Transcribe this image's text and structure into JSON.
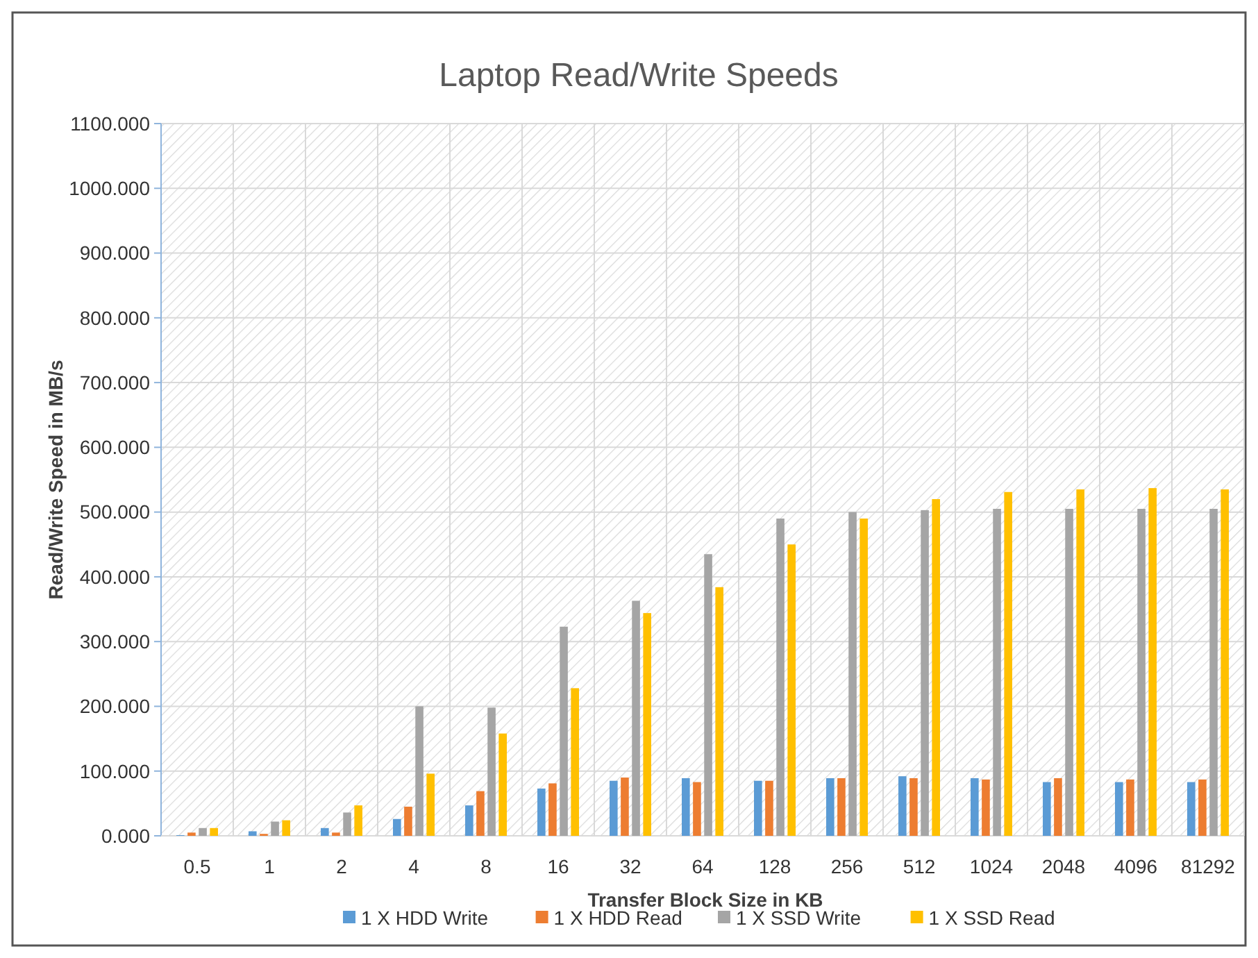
{
  "chart_data": {
    "type": "bar",
    "title": "Laptop Read/Write Speeds",
    "xlabel": "Transfer Block Size in KB",
    "ylabel": "Read/Write Speed in MB/s",
    "categories": [
      "0.5",
      "1",
      "2",
      "4",
      "8",
      "16",
      "32",
      "64",
      "128",
      "256",
      "512",
      "1024",
      "2048",
      "4096",
      "81292"
    ],
    "series": [
      {
        "name": "1 X HDD Write",
        "color": "#5b9bd5",
        "values": [
          1,
          7,
          12,
          26,
          47,
          73,
          85,
          89,
          85,
          89,
          92,
          89,
          83,
          83,
          83
        ]
      },
      {
        "name": "1 X HDD Read",
        "color": "#ed7d31",
        "values": [
          5,
          3,
          5,
          45,
          69,
          81,
          90,
          83,
          85,
          89,
          89,
          87,
          89,
          87,
          87
        ]
      },
      {
        "name": "1 X SSD Write",
        "color": "#a5a5a5",
        "values": [
          12,
          22,
          36,
          200,
          198,
          323,
          363,
          435,
          490,
          500,
          503,
          505,
          505,
          505,
          505
        ]
      },
      {
        "name": "1 X SSD Read",
        "color": "#ffc000",
        "values": [
          12,
          24,
          47,
          96,
          158,
          228,
          344,
          384,
          450,
          490,
          520,
          531,
          535,
          537,
          535
        ]
      }
    ],
    "ylim": [
      0,
      1100
    ],
    "yticks": [
      {
        "value": 0,
        "label": "0.000"
      },
      {
        "value": 100,
        "label": "100.000"
      },
      {
        "value": 200,
        "label": "200.000"
      },
      {
        "value": 300,
        "label": "300.000"
      },
      {
        "value": 400,
        "label": "400.000"
      },
      {
        "value": 500,
        "label": "500.000"
      },
      {
        "value": 600,
        "label": "600.000"
      },
      {
        "value": 700,
        "label": "700.000"
      },
      {
        "value": 800,
        "label": "800.000"
      },
      {
        "value": 900,
        "label": "900.000"
      },
      {
        "value": 1000,
        "label": "1000.000"
      },
      {
        "value": 1100,
        "label": "1100.000"
      }
    ],
    "grid": true,
    "legend": "bottom"
  }
}
